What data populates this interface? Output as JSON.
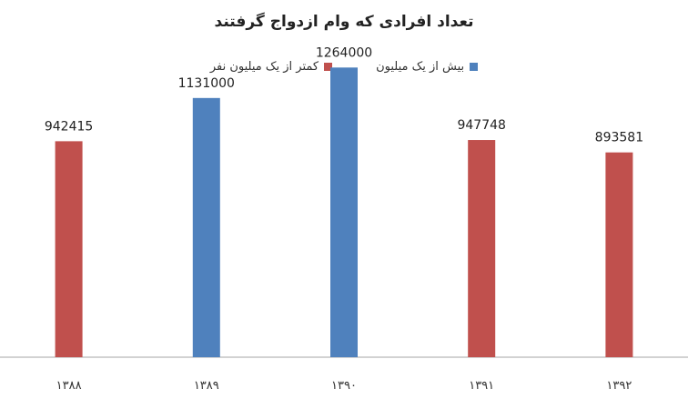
{
  "chart_data": {
    "type": "bar",
    "title": "تعداد افرادی که وام ازدواج گرفتند",
    "categories": [
      "۱۳۸۸",
      "۱۳۸۹",
      "۱۳۹۰",
      "۱۳۹۱",
      "۱۳۹۲"
    ],
    "values": [
      942415,
      1131000,
      1264000,
      947748,
      893581
    ],
    "data_labels": [
      "942415",
      "1131000",
      "1264000",
      "947748",
      "893581"
    ],
    "series_of_bar": [
      "less_than_million",
      "more_than_million",
      "more_than_million",
      "less_than_million",
      "less_than_million"
    ],
    "legend": {
      "placement": "top",
      "items": [
        {
          "key": "more_than_million",
          "label": "بیش از یک میلیون",
          "color": "#4f81bd"
        },
        {
          "key": "less_than_million",
          "label": "کمتر از یک میلیون نفر",
          "color": "#c0504d"
        }
      ]
    },
    "ylim": [
      0,
      1400000
    ],
    "grid": false
  }
}
